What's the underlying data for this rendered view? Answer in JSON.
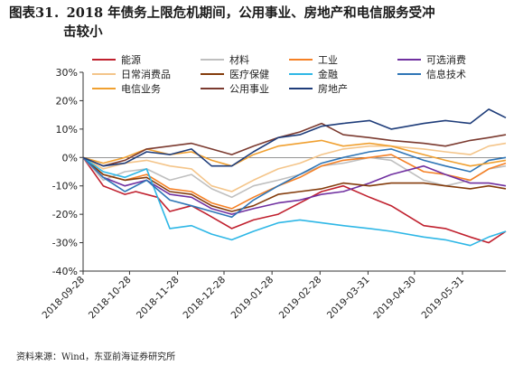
{
  "figure": {
    "title_line1": "图表31．2018 年债务上限危机期间，公用事业、房地产和电信服务受冲",
    "title_line2": "击较小",
    "source": "资料来源：Wind，东亚前海证券研究所"
  },
  "chart_data": {
    "type": "line",
    "title": "",
    "xlabel": "",
    "ylabel": "",
    "ylim": [
      -40,
      30
    ],
    "yticks": [
      -40,
      -30,
      -20,
      -10,
      0,
      10,
      20,
      30
    ],
    "ytick_labels": [
      "-40%",
      "-30%",
      "-20%",
      "-10%",
      "0%",
      "10%",
      "20%",
      "30%"
    ],
    "x_dates": [
      "2018-09-28",
      "2018-10-28",
      "2018-11-28",
      "2018-12-28",
      "2019-01-28",
      "2019-02-28",
      "2019-03-31",
      "2019-04-30",
      "2019-05-31"
    ],
    "x_start": "2018-09-28",
    "x_end": "2019-06-28",
    "grid": false,
    "legend": "top",
    "series": [
      {
        "name": "能源",
        "color": "#c0202e",
        "points": [
          [
            "2018-09-28",
            0
          ],
          [
            "2018-10-11",
            -10
          ],
          [
            "2018-10-25",
            -13
          ],
          [
            "2018-11-01",
            -12
          ],
          [
            "2018-11-15",
            -14
          ],
          [
            "2018-11-23",
            -19
          ],
          [
            "2018-12-07",
            -17
          ],
          [
            "2018-12-17",
            -20
          ],
          [
            "2019-01-02",
            -25
          ],
          [
            "2019-01-16",
            -22
          ],
          [
            "2019-02-01",
            -20
          ],
          [
            "2019-02-15",
            -16
          ],
          [
            "2019-03-01",
            -12
          ],
          [
            "2019-03-15",
            -10
          ],
          [
            "2019-04-01",
            -14
          ],
          [
            "2019-04-15",
            -17
          ],
          [
            "2019-05-06",
            -24
          ],
          [
            "2019-05-20",
            -25
          ],
          [
            "2019-06-05",
            -28
          ],
          [
            "2019-06-17",
            -30
          ],
          [
            "2019-06-28",
            -26
          ]
        ]
      },
      {
        "name": "材料",
        "color": "#bfbfbf",
        "points": [
          [
            "2018-09-28",
            0
          ],
          [
            "2018-10-11",
            -8
          ],
          [
            "2018-10-25",
            -5
          ],
          [
            "2018-11-08",
            -4
          ],
          [
            "2018-11-23",
            -8
          ],
          [
            "2018-12-07",
            -6
          ],
          [
            "2018-12-20",
            -11
          ],
          [
            "2019-01-02",
            -14
          ],
          [
            "2019-01-16",
            -10
          ],
          [
            "2019-02-01",
            -8
          ],
          [
            "2019-02-15",
            -6
          ],
          [
            "2019-03-01",
            -3
          ],
          [
            "2019-03-15",
            -2
          ],
          [
            "2019-04-01",
            0
          ],
          [
            "2019-04-15",
            -1
          ],
          [
            "2019-05-06",
            -8
          ],
          [
            "2019-05-20",
            -10
          ],
          [
            "2019-06-05",
            -8
          ],
          [
            "2019-06-17",
            -4
          ],
          [
            "2019-06-28",
            -3
          ]
        ]
      },
      {
        "name": "工业",
        "color": "#f58025",
        "points": [
          [
            "2018-09-28",
            0
          ],
          [
            "2018-10-11",
            -6
          ],
          [
            "2018-10-25",
            -8
          ],
          [
            "2018-11-08",
            -6
          ],
          [
            "2018-11-23",
            -11
          ],
          [
            "2018-12-07",
            -12
          ],
          [
            "2018-12-20",
            -16
          ],
          [
            "2019-01-02",
            -18
          ],
          [
            "2019-01-16",
            -14
          ],
          [
            "2019-02-01",
            -10
          ],
          [
            "2019-02-15",
            -7
          ],
          [
            "2019-03-01",
            -3
          ],
          [
            "2019-03-15",
            -1
          ],
          [
            "2019-04-01",
            0
          ],
          [
            "2019-04-15",
            1
          ],
          [
            "2019-05-06",
            -5
          ],
          [
            "2019-05-20",
            -6
          ],
          [
            "2019-06-05",
            -8
          ],
          [
            "2019-06-17",
            -4
          ],
          [
            "2019-06-28",
            -2
          ]
        ]
      },
      {
        "name": "可选消费",
        "color": "#7030a0",
        "points": [
          [
            "2018-09-28",
            0
          ],
          [
            "2018-10-11",
            -7
          ],
          [
            "2018-10-25",
            -10
          ],
          [
            "2018-11-08",
            -8
          ],
          [
            "2018-11-23",
            -13
          ],
          [
            "2018-12-07",
            -14
          ],
          [
            "2018-12-20",
            -18
          ],
          [
            "2019-01-02",
            -20
          ],
          [
            "2019-01-16",
            -18
          ],
          [
            "2019-02-01",
            -16
          ],
          [
            "2019-02-15",
            -15
          ],
          [
            "2019-03-01",
            -13
          ],
          [
            "2019-03-15",
            -12
          ],
          [
            "2019-04-01",
            -9
          ],
          [
            "2019-04-15",
            -6
          ],
          [
            "2019-05-06",
            -3
          ],
          [
            "2019-05-20",
            -6
          ],
          [
            "2019-06-05",
            -9
          ],
          [
            "2019-06-17",
            -9
          ],
          [
            "2019-06-28",
            -10
          ]
        ]
      },
      {
        "name": "日常消费品",
        "color": "#f4c58a",
        "points": [
          [
            "2018-09-28",
            0
          ],
          [
            "2018-10-11",
            -4
          ],
          [
            "2018-10-25",
            -2
          ],
          [
            "2018-11-08",
            -1
          ],
          [
            "2018-11-23",
            -3
          ],
          [
            "2018-12-07",
            -4
          ],
          [
            "2018-12-20",
            -10
          ],
          [
            "2019-01-02",
            -12
          ],
          [
            "2019-01-16",
            -8
          ],
          [
            "2019-02-01",
            -4
          ],
          [
            "2019-02-15",
            -2
          ],
          [
            "2019-03-01",
            1
          ],
          [
            "2019-03-15",
            3
          ],
          [
            "2019-04-01",
            4
          ],
          [
            "2019-04-15",
            4
          ],
          [
            "2019-05-06",
            3
          ],
          [
            "2019-05-20",
            2
          ],
          [
            "2019-06-05",
            1
          ],
          [
            "2019-06-17",
            4
          ],
          [
            "2019-06-28",
            5
          ]
        ]
      },
      {
        "name": "医疗保健",
        "color": "#843c0c",
        "points": [
          [
            "2018-09-28",
            0
          ],
          [
            "2018-10-11",
            -6
          ],
          [
            "2018-10-25",
            -8
          ],
          [
            "2018-11-08",
            -7
          ],
          [
            "2018-11-23",
            -12
          ],
          [
            "2018-12-07",
            -13
          ],
          [
            "2018-12-20",
            -17
          ],
          [
            "2019-01-02",
            -19
          ],
          [
            "2019-01-16",
            -17
          ],
          [
            "2019-02-01",
            -13
          ],
          [
            "2019-02-15",
            -12
          ],
          [
            "2019-03-01",
            -11
          ],
          [
            "2019-03-15",
            -9
          ],
          [
            "2019-04-01",
            -10
          ],
          [
            "2019-04-15",
            -9
          ],
          [
            "2019-05-06",
            -9
          ],
          [
            "2019-05-20",
            -10
          ],
          [
            "2019-06-05",
            -11
          ],
          [
            "2019-06-17",
            -10
          ],
          [
            "2019-06-28",
            -11
          ]
        ]
      },
      {
        "name": "金融",
        "color": "#2eb7e6",
        "points": [
          [
            "2018-09-28",
            0
          ],
          [
            "2018-10-11",
            -5
          ],
          [
            "2018-10-25",
            -7
          ],
          [
            "2018-11-08",
            -4
          ],
          [
            "2018-11-23",
            -25
          ],
          [
            "2018-12-07",
            -24
          ],
          [
            "2018-12-20",
            -27
          ],
          [
            "2019-01-02",
            -29
          ],
          [
            "2019-01-16",
            -26
          ],
          [
            "2019-02-01",
            -23
          ],
          [
            "2019-02-15",
            -22
          ],
          [
            "2019-03-01",
            -23
          ],
          [
            "2019-03-15",
            -24
          ],
          [
            "2019-04-01",
            -25
          ],
          [
            "2019-04-15",
            -26
          ],
          [
            "2019-05-06",
            -28
          ],
          [
            "2019-05-20",
            -29
          ],
          [
            "2019-06-05",
            -31
          ],
          [
            "2019-06-17",
            -28
          ],
          [
            "2019-06-28",
            -26
          ]
        ]
      },
      {
        "name": "信息技术",
        "color": "#2e75b6",
        "points": [
          [
            "2018-09-28",
            0
          ],
          [
            "2018-10-11",
            -7
          ],
          [
            "2018-10-25",
            -12
          ],
          [
            "2018-11-08",
            -8
          ],
          [
            "2018-11-23",
            -15
          ],
          [
            "2018-12-07",
            -17
          ],
          [
            "2018-12-20",
            -19
          ],
          [
            "2019-01-02",
            -21
          ],
          [
            "2019-01-16",
            -15
          ],
          [
            "2019-02-01",
            -10
          ],
          [
            "2019-02-15",
            -6
          ],
          [
            "2019-03-01",
            -2
          ],
          [
            "2019-03-15",
            0
          ],
          [
            "2019-04-01",
            2
          ],
          [
            "2019-04-15",
            3
          ],
          [
            "2019-05-06",
            -1
          ],
          [
            "2019-05-20",
            -3
          ],
          [
            "2019-06-05",
            -5
          ],
          [
            "2019-06-17",
            -1
          ],
          [
            "2019-06-28",
            0
          ]
        ]
      },
      {
        "name": "电信业务",
        "color": "#f0a030",
        "points": [
          [
            "2018-09-28",
            0
          ],
          [
            "2018-10-11",
            -2
          ],
          [
            "2018-10-25",
            0
          ],
          [
            "2018-11-08",
            3
          ],
          [
            "2018-11-23",
            1
          ],
          [
            "2018-12-07",
            2
          ],
          [
            "2018-12-20",
            -1
          ],
          [
            "2019-01-02",
            -3
          ],
          [
            "2019-01-16",
            1
          ],
          [
            "2019-02-01",
            4
          ],
          [
            "2019-02-15",
            5
          ],
          [
            "2019-03-01",
            6
          ],
          [
            "2019-03-15",
            4
          ],
          [
            "2019-04-01",
            5
          ],
          [
            "2019-04-15",
            4
          ],
          [
            "2019-05-06",
            1
          ],
          [
            "2019-05-20",
            -1
          ],
          [
            "2019-06-05",
            -3
          ],
          [
            "2019-06-17",
            -2
          ],
          [
            "2019-06-28",
            -1
          ]
        ]
      },
      {
        "name": "公用事业",
        "color": "#7b3a2f",
        "points": [
          [
            "2018-09-28",
            0
          ],
          [
            "2018-10-11",
            -3
          ],
          [
            "2018-10-25",
            -1
          ],
          [
            "2018-11-08",
            3
          ],
          [
            "2018-11-23",
            4
          ],
          [
            "2018-12-07",
            5
          ],
          [
            "2018-12-20",
            3
          ],
          [
            "2019-01-02",
            1
          ],
          [
            "2019-01-16",
            4
          ],
          [
            "2019-02-01",
            7
          ],
          [
            "2019-02-15",
            9
          ],
          [
            "2019-03-01",
            12
          ],
          [
            "2019-03-15",
            8
          ],
          [
            "2019-04-01",
            7
          ],
          [
            "2019-04-15",
            6
          ],
          [
            "2019-05-06",
            5
          ],
          [
            "2019-05-20",
            4
          ],
          [
            "2019-06-05",
            6
          ],
          [
            "2019-06-17",
            7
          ],
          [
            "2019-06-28",
            8
          ]
        ]
      },
      {
        "name": "房地产",
        "color": "#1f3d7a",
        "points": [
          [
            "2018-09-28",
            0
          ],
          [
            "2018-10-11",
            -3
          ],
          [
            "2018-10-25",
            -2
          ],
          [
            "2018-11-08",
            2
          ],
          [
            "2018-11-23",
            1
          ],
          [
            "2018-12-07",
            3
          ],
          [
            "2018-12-20",
            -3
          ],
          [
            "2019-01-02",
            -3
          ],
          [
            "2019-01-16",
            2
          ],
          [
            "2019-02-01",
            7
          ],
          [
            "2019-02-15",
            8
          ],
          [
            "2019-03-01",
            11
          ],
          [
            "2019-03-15",
            12
          ],
          [
            "2019-04-01",
            13
          ],
          [
            "2019-04-15",
            10
          ],
          [
            "2019-05-06",
            12
          ],
          [
            "2019-05-20",
            13
          ],
          [
            "2019-06-05",
            12
          ],
          [
            "2019-06-17",
            17
          ],
          [
            "2019-06-28",
            14
          ]
        ]
      }
    ]
  }
}
